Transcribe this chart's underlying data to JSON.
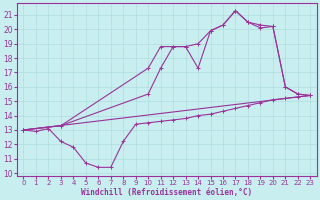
{
  "xlabel": "Windchill (Refroidissement éolien,°C)",
  "bg_color": "#c8eef0",
  "grid_color": "#b0dde0",
  "line_color": "#993399",
  "xlim": [
    -0.5,
    23.5
  ],
  "ylim": [
    9.8,
    21.8
  ],
  "yticks": [
    10,
    11,
    12,
    13,
    14,
    15,
    16,
    17,
    18,
    19,
    20,
    21
  ],
  "xticks": [
    0,
    1,
    2,
    3,
    4,
    5,
    6,
    7,
    8,
    9,
    10,
    11,
    12,
    13,
    14,
    15,
    16,
    17,
    18,
    19,
    20,
    21,
    22,
    23
  ],
  "series": [
    {
      "x": [
        0,
        1,
        2,
        3,
        4,
        5,
        6,
        7,
        8,
        9,
        10,
        11,
        12,
        13,
        14,
        15,
        16,
        17,
        18,
        19,
        20,
        21,
        22,
        23
      ],
      "y": [
        13.0,
        12.9,
        13.1,
        12.2,
        11.8,
        10.7,
        10.4,
        10.4,
        12.2,
        13.4,
        13.5,
        13.6,
        13.7,
        13.8,
        14.0,
        14.1,
        14.3,
        14.5,
        14.7,
        14.9,
        15.1,
        15.2,
        15.3,
        15.4
      ]
    },
    {
      "x": [
        0,
        3,
        10,
        11,
        12,
        13,
        14,
        15,
        16,
        17,
        18,
        19,
        20,
        21,
        22,
        23
      ],
      "y": [
        13.0,
        13.3,
        17.3,
        18.8,
        18.8,
        18.8,
        17.3,
        19.9,
        20.3,
        21.3,
        20.5,
        20.3,
        20.2,
        16.0,
        15.5,
        15.4
      ]
    },
    {
      "x": [
        0,
        3,
        10,
        11,
        12,
        13,
        14,
        15,
        16,
        17,
        18,
        19,
        20,
        21,
        22,
        23
      ],
      "y": [
        13.0,
        13.3,
        15.5,
        17.3,
        18.8,
        18.8,
        19.0,
        19.9,
        20.3,
        21.3,
        20.5,
        20.1,
        20.2,
        16.0,
        15.5,
        15.4
      ]
    },
    {
      "x": [
        0,
        23
      ],
      "y": [
        13.0,
        15.4
      ]
    }
  ]
}
